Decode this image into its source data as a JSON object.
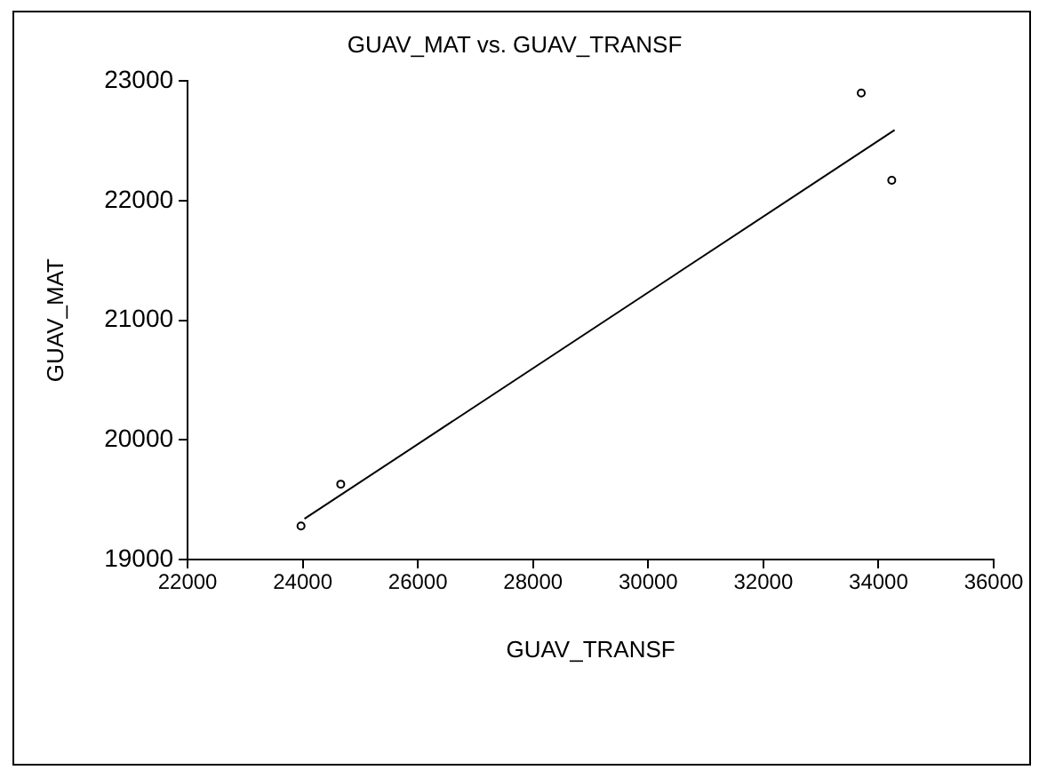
{
  "chart_data": {
    "type": "scatter",
    "title": "GUAV_MAT vs. GUAV_TRANSF",
    "xlabel": "GUAV_TRANSF",
    "ylabel": "GUAV_MAT",
    "xlim": [
      22000,
      36000
    ],
    "xticks": [
      22000,
      24000,
      26000,
      28000,
      30000,
      32000,
      34000,
      36000
    ],
    "ylim": [
      19000,
      23000
    ],
    "yticks": [
      19000,
      20000,
      21000,
      22000,
      23000
    ],
    "grid": false,
    "legend": false,
    "marker": "circle",
    "series": [
      {
        "type": "scatter",
        "color": "#000000",
        "x": [
          23970,
          24660,
          33700,
          34230
        ],
        "values": [
          19280,
          19630,
          22900,
          22170
        ]
      },
      {
        "type": "line",
        "color": "#000000",
        "marker": "none",
        "x": [
          24030,
          34280
        ],
        "values": [
          19340,
          22590
        ]
      }
    ]
  }
}
